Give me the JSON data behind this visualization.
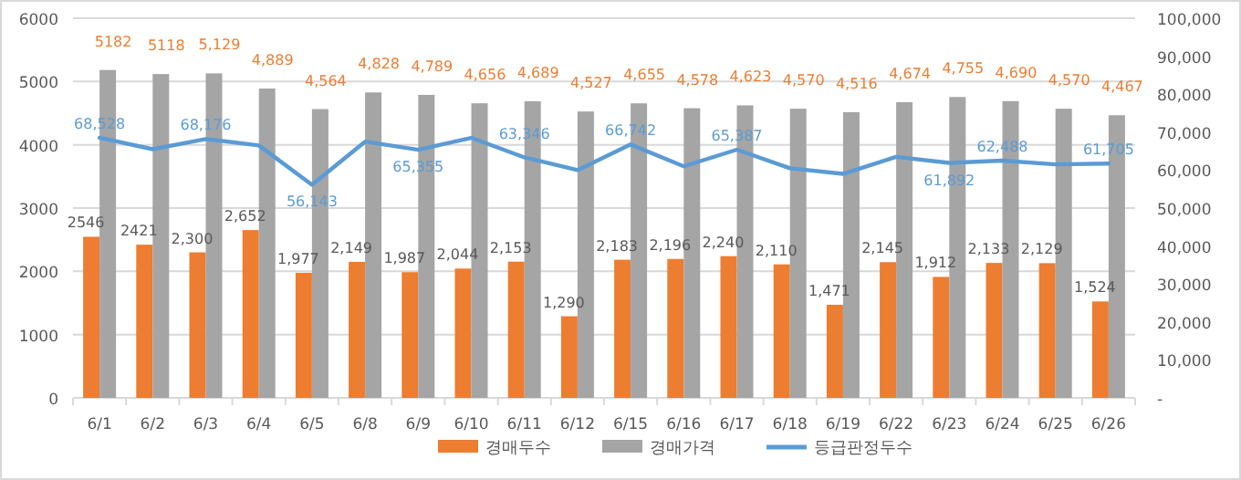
{
  "chart_data": {
    "type": "bar",
    "categories": [
      "6/1",
      "6/2",
      "6/3",
      "6/4",
      "6/5",
      "6/8",
      "6/9",
      "6/10",
      "6/11",
      "6/12",
      "6/15",
      "6/16",
      "6/17",
      "6/18",
      "6/19",
      "6/22",
      "6/23",
      "6/24",
      "6/25",
      "6/26"
    ],
    "series": [
      {
        "name": "경매두수",
        "color": "#ed7d31",
        "values": [
          2546,
          2421,
          2300,
          2652,
          1977,
          2149,
          1987,
          2044,
          2153,
          1290,
          2183,
          2196,
          2240,
          2110,
          1471,
          2145,
          1912,
          2133,
          2129,
          1524
        ],
        "value_labels": [
          "2546",
          "2421",
          "2,300",
          "2,652",
          "1,977",
          "2,149",
          "1,987",
          "2,044",
          "2,153",
          "1,290",
          "2,183",
          "2,196",
          "2,240",
          "2,110",
          "1,471",
          "2,145",
          "1,912",
          "2,133",
          "2,129",
          "1,524"
        ]
      },
      {
        "name": "경매가격",
        "type": "bar",
        "color": "#a5a5a5",
        "values": [
          5182,
          5118,
          5129,
          4889,
          4564,
          4828,
          4789,
          4656,
          4689,
          4527,
          4655,
          4578,
          4623,
          4570,
          4516,
          4674,
          4755,
          4690,
          4570,
          4467
        ],
        "value_labels": [
          "5182",
          "5118",
          "5,129",
          "4,889",
          "4,564",
          "4,828",
          "4,789",
          "4,656",
          "4,689",
          "4,527",
          "4,655",
          "4,578",
          "4,623",
          "4,570",
          "4,516",
          "4,674",
          "4,755",
          "4,690",
          "4,570",
          "4,467"
        ]
      },
      {
        "name": "등급판정두수",
        "type": "line",
        "axis": "y2",
        "color": "#5b9bd5",
        "values": [
          68528,
          65500,
          68176,
          66500,
          56143,
          67500,
          65355,
          68500,
          63346,
          60000,
          66742,
          61000,
          65387,
          60500,
          59000,
          63500,
          61892,
          62488,
          61500,
          61705
        ],
        "value_labels": [
          "68,528",
          null,
          "68,176",
          null,
          "56,143",
          null,
          "65,355",
          null,
          "63,346",
          null,
          "66,742",
          null,
          "65,387",
          null,
          null,
          null,
          "61,892",
          "62,488",
          null,
          "61,705"
        ]
      }
    ],
    "ylim": [
      0,
      6000
    ],
    "yticks": [
      0,
      1000,
      2000,
      3000,
      4000,
      5000,
      6000
    ],
    "y2lim": [
      0,
      100000
    ],
    "y2ticks": [
      {
        "value": 0,
        "label": "-"
      },
      {
        "value": 10000,
        "label": "10,000"
      },
      {
        "value": 20000,
        "label": "20,000"
      },
      {
        "value": 30000,
        "label": "30,000"
      },
      {
        "value": 40000,
        "label": "40,000"
      },
      {
        "value": 50000,
        "label": "50,000"
      },
      {
        "value": 60000,
        "label": "60,000"
      },
      {
        "value": 70000,
        "label": "70,000"
      },
      {
        "value": 80000,
        "label": "80,000"
      },
      {
        "value": 90000,
        "label": "90,000"
      },
      {
        "value": 100000,
        "label": "100,000"
      }
    ],
    "grid": "y",
    "legend": "bottom"
  }
}
